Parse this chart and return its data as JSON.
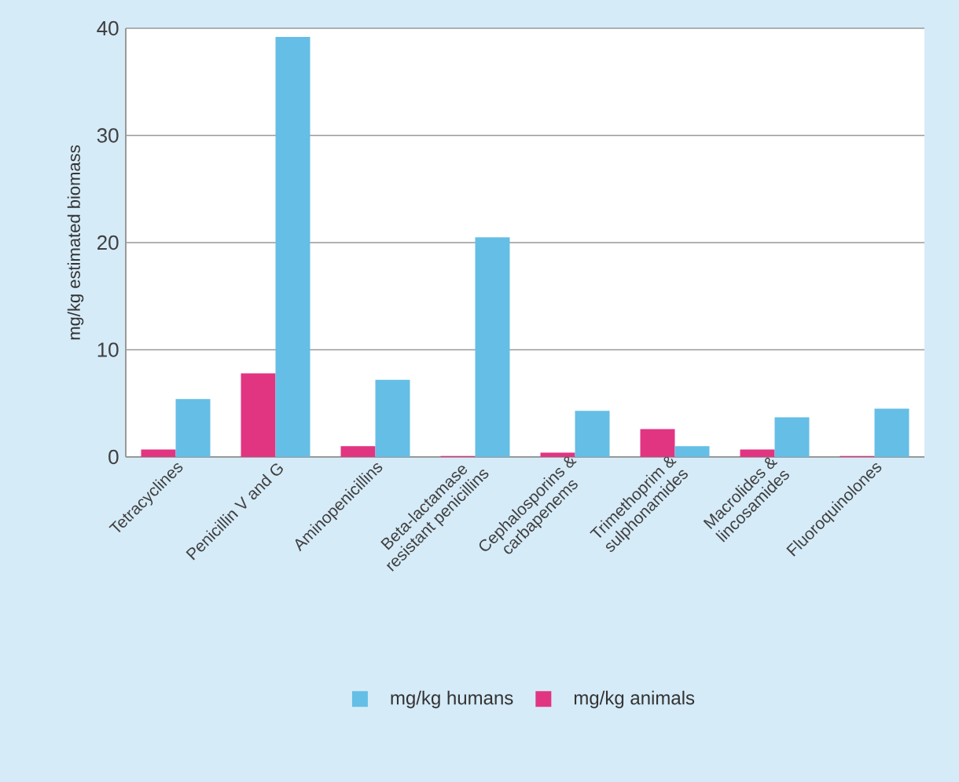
{
  "chart_data": {
    "type": "bar",
    "ylabel": "mg/kg estimated biomass",
    "categories": [
      "Tetracyclines",
      "Penicillin V and G",
      "Aminopenicillins",
      "Beta-lactamase resistant penicillins",
      "Cephalosporins & carbapenems",
      "Trimethoprim & sulphonamides",
      "Macrolides & lincosamides",
      "Fluoroquinolones"
    ],
    "series": [
      {
        "name": "mg/kg animals",
        "color": "#e13582",
        "values": [
          0.7,
          7.8,
          1.0,
          0.1,
          0.4,
          2.6,
          0.7,
          0.1
        ]
      },
      {
        "name": "mg/kg humans",
        "color": "#65bee5",
        "values": [
          5.4,
          39.2,
          7.2,
          20.5,
          4.3,
          1.0,
          3.7,
          4.5
        ]
      }
    ],
    "ylim": [
      0,
      40
    ],
    "yticks": [
      0,
      10,
      20,
      30,
      40
    ],
    "grid": "y",
    "legend": "bottom"
  }
}
